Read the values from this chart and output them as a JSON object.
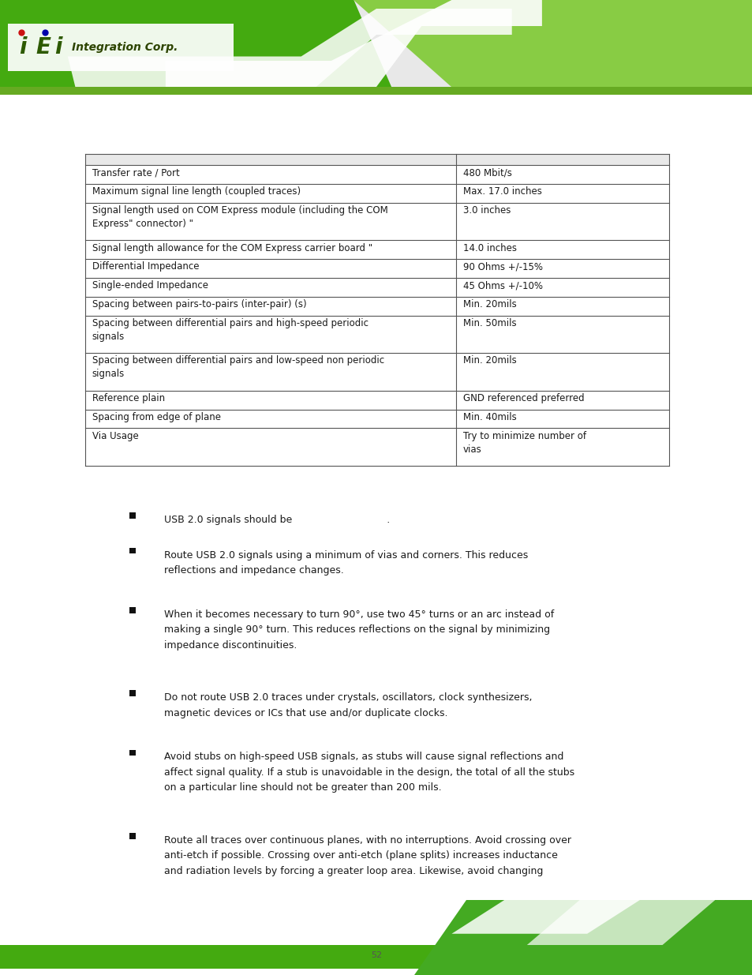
{
  "page_width": 9.54,
  "page_height": 12.35,
  "background_color": "#ffffff",
  "table_border_color": "#555555",
  "table_rows": [
    [
      "",
      ""
    ],
    [
      "Transfer rate / Port",
      "480 Mbit/s"
    ],
    [
      "Maximum signal line length (coupled traces)",
      "Max. 17.0 inches"
    ],
    [
      "Signal length used on COM Express module (including the COM\nExpress\" connector) \"",
      "3.0 inches"
    ],
    [
      "Signal length allowance for the COM Express carrier board \"",
      "14.0 inches"
    ],
    [
      "Differential Impedance",
      "90 Ohms +/-15%"
    ],
    [
      "Single-ended Impedance",
      "45 Ohms +/-10%"
    ],
    [
      "Spacing between pairs-to-pairs (inter-pair) (s)",
      "Min. 20mils"
    ],
    [
      "Spacing between differential pairs and high-speed periodic\nsignals",
      "Min. 50mils"
    ],
    [
      "Spacing between differential pairs and low-speed non periodic\nsignals",
      "Min. 20mils"
    ],
    [
      "Reference plain",
      "GND referenced preferred"
    ],
    [
      "Spacing from edge of plane",
      "Min. 40mils"
    ],
    [
      "Via Usage",
      "Try to minimize number of\nvias"
    ]
  ],
  "bullet_points": [
    "USB 2.0 signals should be                              .",
    "Route USB 2.0 signals using a minimum of vias and corners. This reduces\nreflections and impedance changes.",
    "When it becomes necessary to turn 90°, use two 45° turns or an arc instead of\nmaking a single 90° turn. This reduces reflections on the signal by minimizing\nimpedance discontinuities.",
    "Do not route USB 2.0 traces under crystals, oscillators, clock synthesizers,\nmagnetic devices or ICs that use and/or duplicate clocks.",
    "Avoid stubs on high-speed USB signals, as stubs will cause signal reflections and\naffect signal quality. If a stub is unavoidable in the design, the total of all the stubs\non a particular line should not be greater than 200 mils.",
    "Route all traces over continuous planes, with no interruptions. Avoid crossing over\nanti-etch if possible. Crossing over anti-etch (plane splits) increases inductance\nand radiation levels by forcing a greater loop area. Likewise, avoid changing"
  ],
  "font_size_table": 8.5,
  "font_size_bullet": 9.0,
  "text_color": "#1a1a1a",
  "col1_ratio": 0.635,
  "header_green": "#4aaa1a",
  "header_light_green": "#88cc44",
  "footer_green": "#3a9910",
  "footer_light_green": "#66bb22"
}
